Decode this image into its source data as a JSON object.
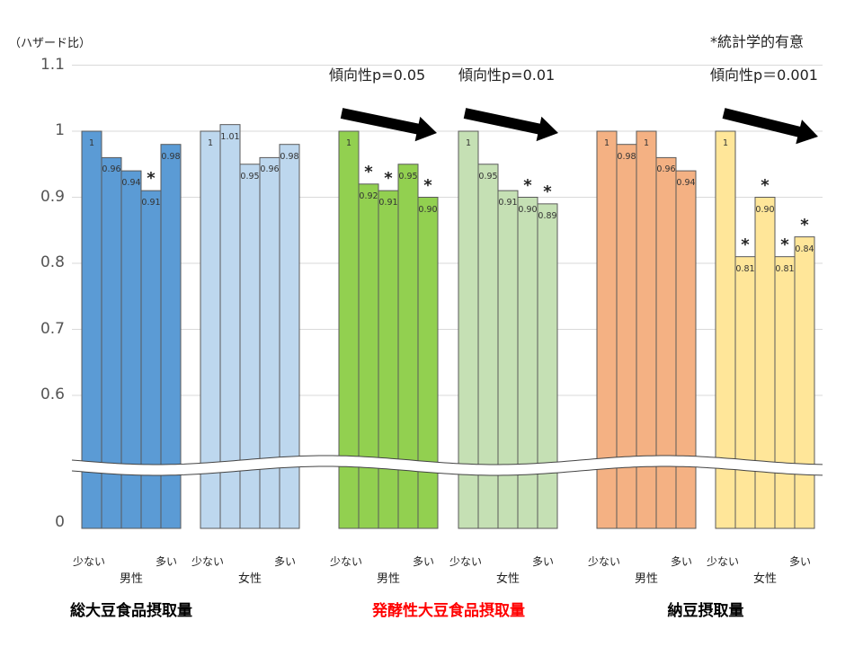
{
  "chart_data": {
    "type": "bar",
    "ylabel": "（ハザード比）",
    "ylim": [
      0.5,
      1.1
    ],
    "y_ticks": [
      "1.1",
      "1",
      "0.9",
      "0.8",
      "0.7",
      "0.6",
      "0"
    ],
    "y_tick_values": [
      1.1,
      1.0,
      0.9,
      0.8,
      0.7,
      0.6
    ],
    "axis_break": true,
    "grid": true,
    "significance_note": "*統計学的有意",
    "significance_mark": "*",
    "groups": [
      {
        "category": "総大豆食品摂取量",
        "sex": "男性",
        "color": "#5B9BD5",
        "values": [
          1,
          0.96,
          0.94,
          0.91,
          0.98
        ],
        "labels": [
          "1",
          "0.96",
          "0.94",
          "0.91",
          "0.98"
        ],
        "significant": [
          false,
          false,
          false,
          true,
          false
        ],
        "trend": null
      },
      {
        "category": "総大豆食品摂取量",
        "sex": "女性",
        "color": "#BDD7EE",
        "values": [
          1,
          1.01,
          0.95,
          0.96,
          0.98
        ],
        "labels": [
          "1",
          "1.01",
          "0.95",
          "0.96",
          "0.98"
        ],
        "significant": [
          false,
          false,
          false,
          false,
          false
        ],
        "trend": null
      },
      {
        "category": "発酵性大豆食品摂取量",
        "sex": "男性",
        "color": "#92D050",
        "values": [
          1,
          0.92,
          0.91,
          0.95,
          0.9
        ],
        "labels": [
          "1",
          "0.92",
          "0.91",
          "0.95",
          "0.90"
        ],
        "significant": [
          false,
          true,
          true,
          false,
          true
        ],
        "trend": "傾向性p=0.05"
      },
      {
        "category": "発酵性大豆食品摂取量",
        "sex": "女性",
        "color": "#C5E0B4",
        "values": [
          1,
          0.95,
          0.91,
          0.9,
          0.89
        ],
        "labels": [
          "1",
          "0.95",
          "0.91",
          "0.90",
          "0.89"
        ],
        "significant": [
          false,
          false,
          false,
          true,
          true
        ],
        "trend": "傾向性p=0.01"
      },
      {
        "category": "納豆摂取量",
        "sex": "男性",
        "color": "#F4B183",
        "values": [
          1,
          0.98,
          1,
          0.96,
          0.94
        ],
        "labels": [
          "1",
          "0.98",
          "1",
          "0.96",
          "0.94"
        ],
        "significant": [
          false,
          false,
          false,
          false,
          false
        ],
        "trend": null
      },
      {
        "category": "納豆摂取量",
        "sex": "女性",
        "color": "#FFE699",
        "values": [
          1,
          0.81,
          0.9,
          0.81,
          0.84
        ],
        "labels": [
          "1",
          "0.81",
          "0.90",
          "0.81",
          "0.84"
        ],
        "significant": [
          false,
          true,
          true,
          true,
          true
        ],
        "trend": "傾向性p＝0.001"
      }
    ],
    "x_low_label": "少ない",
    "x_high_label": "多い",
    "categories": [
      {
        "name": "総大豆食品摂取量",
        "color": "#000000"
      },
      {
        "name": "発酵性大豆食品摂取量",
        "color": "#FF0000"
      },
      {
        "name": "納豆摂取量",
        "color": "#000000"
      }
    ]
  }
}
